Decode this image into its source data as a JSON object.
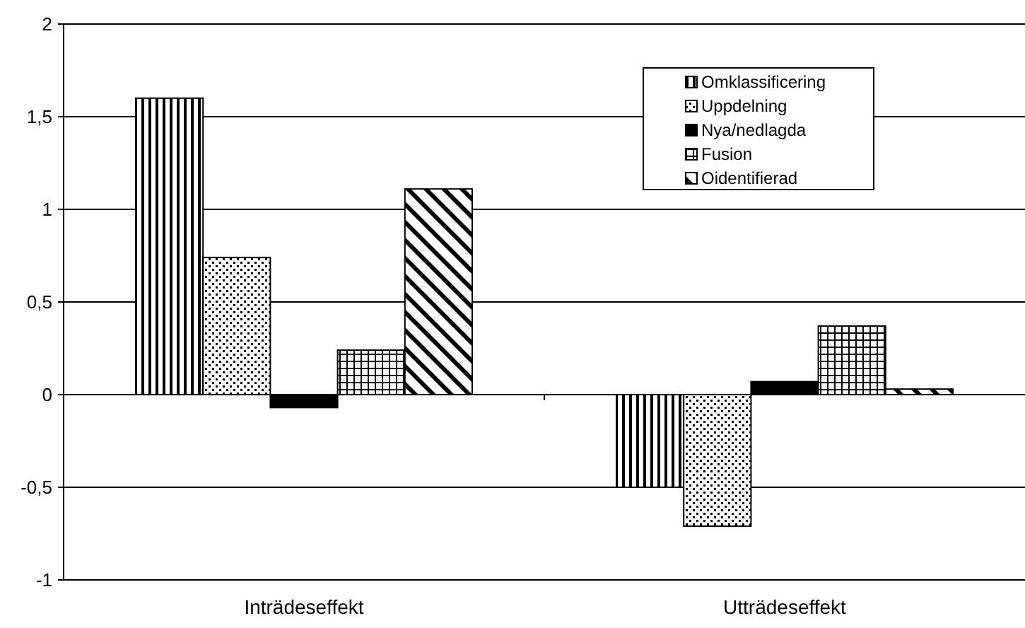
{
  "chart_data": {
    "type": "bar",
    "categories": [
      "Inträdeseffekt",
      "Utträdeseffekt"
    ],
    "series": [
      {
        "name": "Omklassificering",
        "color": "#000000",
        "values": [
          1.6,
          -0.5
        ]
      },
      {
        "name": "Uppdelning",
        "color": "#000000",
        "values": [
          0.74,
          -0.71
        ]
      },
      {
        "name": "Nya/nedlagda",
        "color": "#000000",
        "values": [
          -0.07,
          0.07
        ]
      },
      {
        "name": "Fusion",
        "color": "#000000",
        "values": [
          0.24,
          0.37
        ]
      },
      {
        "name": "Oidentifierad",
        "color": "#000000",
        "values": [
          1.11,
          0.03
        ]
      }
    ],
    "ylim": [
      -1,
      2
    ],
    "yticks": [
      -1,
      {
        "value": -0.5,
        "label": "-0,5"
      },
      0,
      {
        "value": 0.5,
        "label": "0,5"
      },
      1,
      {
        "value": 1.5,
        "label": "1,5"
      },
      2
    ],
    "grid": "y",
    "legend": "top right"
  }
}
